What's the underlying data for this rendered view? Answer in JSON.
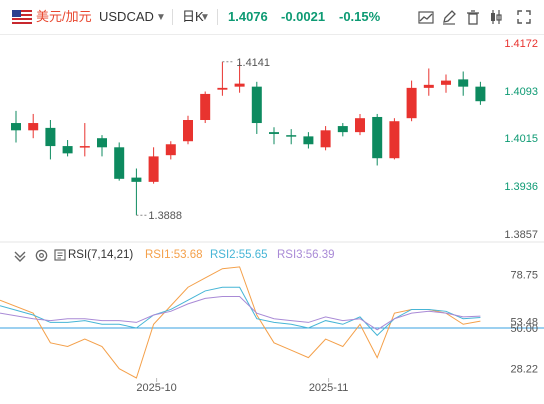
{
  "toolbar": {
    "pair_cn": "美元/加元",
    "pair_code": "USDCAD",
    "period": "日K",
    "price": "1.4076",
    "change": "-0.0021",
    "change_pct": "-0.15%",
    "icons": [
      "flag-icon",
      "chevron-down-icon",
      "area-chart-icon",
      "draw-pen-icon",
      "delete-icon",
      "candle-style-icon",
      "fullscreen-icon"
    ]
  },
  "colors": {
    "up": "#e8332f",
    "down": "#0d8a5f",
    "rsi1": "#f4a04a",
    "rsi2": "#46b5d6",
    "rsi3": "#a98ad6",
    "ref": "#3aa0e0",
    "quote": "#0d9a73",
    "pair": "#e8472f"
  },
  "rsi_header": {
    "title": "RSI(7,14,21)",
    "rsi1": "RSI1:53.68",
    "rsi2": "RSI2:55.65",
    "rsi3": "RSI3:56.39"
  },
  "chart_data": [
    {
      "type": "candlestick",
      "title": "",
      "ylim": [
        1.3857,
        1.4172
      ],
      "y_ticks": [
        "1.4172",
        "1.4093",
        "1.4015",
        "1.3936",
        "1.3857"
      ],
      "y_tick_values": [
        1.4172,
        1.4093,
        1.4015,
        1.3936,
        1.3857
      ],
      "max_label": "1.4141",
      "min_label": "1.3888",
      "grid": false,
      "candles": [
        {
          "o": 1.404,
          "h": 1.406,
          "l": 1.4008,
          "c": 1.4028
        },
        {
          "o": 1.4028,
          "h": 1.4055,
          "l": 1.4015,
          "c": 1.404
        },
        {
          "o": 1.4032,
          "h": 1.4045,
          "l": 1.398,
          "c": 1.4002
        },
        {
          "o": 1.4002,
          "h": 1.4012,
          "l": 1.3985,
          "c": 1.399
        },
        {
          "o": 1.4,
          "h": 1.404,
          "l": 1.3985,
          "c": 1.4002
        },
        {
          "o": 1.4015,
          "h": 1.402,
          "l": 1.3985,
          "c": 1.4
        },
        {
          "o": 1.4,
          "h": 1.4008,
          "l": 1.3945,
          "c": 1.3948
        },
        {
          "o": 1.395,
          "h": 1.3965,
          "l": 1.3888,
          "c": 1.3943
        },
        {
          "o": 1.3943,
          "h": 1.4,
          "l": 1.394,
          "c": 1.3985
        },
        {
          "o": 1.3987,
          "h": 1.401,
          "l": 1.398,
          "c": 1.4005
        },
        {
          "o": 1.401,
          "h": 1.4052,
          "l": 1.4005,
          "c": 1.4045
        },
        {
          "o": 1.4045,
          "h": 1.4092,
          "l": 1.404,
          "c": 1.4088
        },
        {
          "o": 1.4095,
          "h": 1.4141,
          "l": 1.4085,
          "c": 1.4098
        },
        {
          "o": 1.41,
          "h": 1.4141,
          "l": 1.409,
          "c": 1.4105
        },
        {
          "o": 1.41,
          "h": 1.4108,
          "l": 1.4022,
          "c": 1.404
        },
        {
          "o": 1.4025,
          "h": 1.4033,
          "l": 1.4005,
          "c": 1.4022
        },
        {
          "o": 1.402,
          "h": 1.403,
          "l": 1.4005,
          "c": 1.4018
        },
        {
          "o": 1.4018,
          "h": 1.4025,
          "l": 1.3998,
          "c": 1.4005
        },
        {
          "o": 1.4,
          "h": 1.4035,
          "l": 1.3995,
          "c": 1.4028
        },
        {
          "o": 1.4035,
          "h": 1.404,
          "l": 1.4018,
          "c": 1.4025
        },
        {
          "o": 1.4025,
          "h": 1.4055,
          "l": 1.402,
          "c": 1.4048
        },
        {
          "o": 1.405,
          "h": 1.4055,
          "l": 1.397,
          "c": 1.3982
        },
        {
          "o": 1.3982,
          "h": 1.4048,
          "l": 1.398,
          "c": 1.4043
        },
        {
          "o": 1.4048,
          "h": 1.411,
          "l": 1.4043,
          "c": 1.4098
        },
        {
          "o": 1.4098,
          "h": 1.413,
          "l": 1.4085,
          "c": 1.4103
        },
        {
          "o": 1.4103,
          "h": 1.412,
          "l": 1.409,
          "c": 1.411
        },
        {
          "o": 1.4112,
          "h": 1.4125,
          "l": 1.4085,
          "c": 1.41
        },
        {
          "o": 1.41,
          "h": 1.4108,
          "l": 1.407,
          "c": 1.4076
        }
      ]
    },
    {
      "type": "line",
      "title": "",
      "ylim": [
        23,
        84
      ],
      "y_ticks": [
        "78.75",
        "53.48",
        "50.00",
        "28.22"
      ],
      "y_tick_values": [
        78.75,
        53.48,
        50.0,
        28.22
      ],
      "reference_line": 50.0,
      "x_ticks": [
        "2025-10",
        "2025-11"
      ],
      "x_tick_index": [
        8,
        18
      ],
      "series": [
        {
          "name": "RSI1",
          "values": [
            65,
            58,
            42,
            40,
            44,
            40,
            28,
            23,
            52,
            62,
            72,
            77,
            82,
            83,
            57,
            42,
            38,
            34,
            44,
            40,
            52,
            34,
            58,
            60,
            60,
            58,
            52,
            53.68
          ]
        },
        {
          "name": "RSI2",
          "values": [
            62,
            57,
            53,
            53,
            54,
            52,
            52,
            50,
            57,
            60,
            65,
            70,
            72,
            72,
            55,
            53,
            52,
            50,
            54,
            52,
            56,
            46,
            55,
            60,
            60,
            59,
            55,
            55.65
          ]
        },
        {
          "name": "RSI3",
          "values": [
            58,
            55,
            54,
            55,
            55,
            54,
            54,
            53,
            57,
            59,
            63,
            66,
            67,
            67,
            58,
            55,
            54,
            53,
            56,
            54,
            55,
            49,
            55,
            58,
            59,
            58,
            56,
            56.39
          ]
        }
      ]
    }
  ]
}
